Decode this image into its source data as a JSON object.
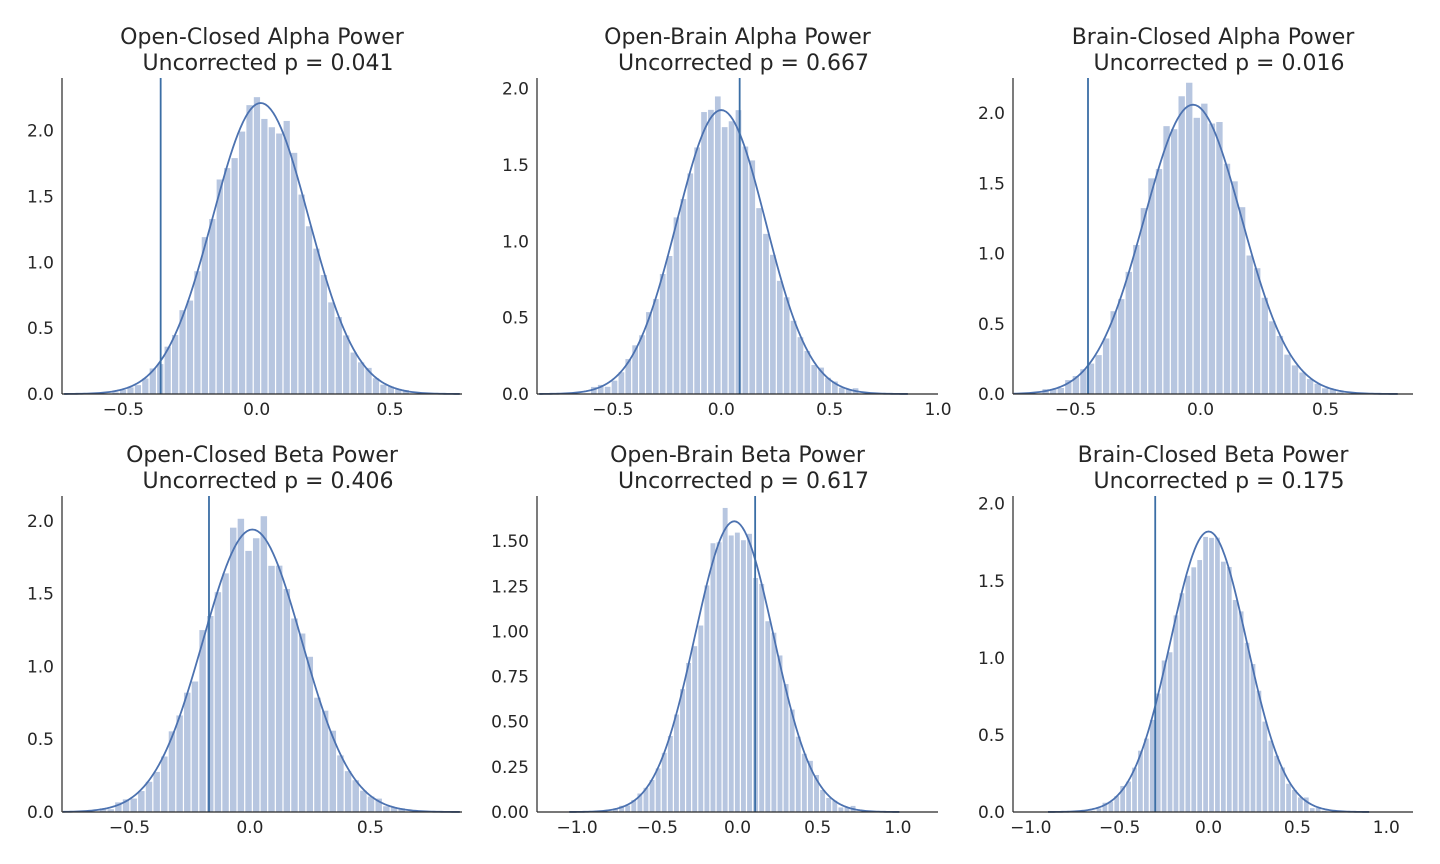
{
  "colors": {
    "bar": "#b7c6e0",
    "kde": "#4c72b0",
    "observed_line": "#3b6ea5",
    "text": "#262626"
  },
  "chart_data": [
    {
      "type": "bar",
      "title_line1": "Open-Closed Alpha Power",
      "title_line2": "Uncorrected p = 0.041",
      "xlim": [
        -0.73,
        0.77
      ],
      "ylim": [
        0,
        2.4
      ],
      "xticks": [
        -0.5,
        0.0,
        0.5
      ],
      "xtick_labels": [
        "−0.5",
        "0.0",
        "0.5"
      ],
      "yticks": [
        0.0,
        0.5,
        1.0,
        1.5,
        2.0
      ],
      "ytick_labels": [
        "0.0",
        "0.5",
        "1.0",
        "1.5",
        "2.0"
      ],
      "mean": 0.015,
      "sd": 0.18,
      "peak": 2.21,
      "bins": 40,
      "observed_value": -0.36,
      "grid": false
    },
    {
      "type": "bar",
      "title_line1": "Open-Brain Alpha Power",
      "title_line2": "Uncorrected p = 0.667",
      "xlim": [
        -0.85,
        1.0
      ],
      "ylim": [
        0,
        2.07
      ],
      "xticks": [
        -0.5,
        0.0,
        0.5,
        1.0
      ],
      "xtick_labels": [
        "−0.5",
        "0.0",
        "0.5",
        "1.0"
      ],
      "yticks": [
        0.0,
        0.5,
        1.0,
        1.5,
        2.0
      ],
      "ytick_labels": [
        "0.0",
        "0.5",
        "1.0",
        "1.5",
        "2.0"
      ],
      "mean": 0.0,
      "sd": 0.205,
      "peak": 1.86,
      "bins": 40,
      "observed_value": 0.085,
      "grid": false
    },
    {
      "type": "bar",
      "title_line1": "Brain-Closed Alpha Power",
      "title_line2": "Uncorrected p = 0.016",
      "xlim": [
        -0.75,
        0.85
      ],
      "ylim": [
        0,
        2.25
      ],
      "xticks": [
        -0.5,
        0.0,
        0.5
      ],
      "xtick_labels": [
        "−0.5",
        "0.0",
        "0.5"
      ],
      "yticks": [
        0.0,
        0.5,
        1.0,
        1.5,
        2.0
      ],
      "ytick_labels": [
        "0.0",
        "0.5",
        "1.0",
        "1.5",
        "2.0"
      ],
      "mean": -0.03,
      "sd": 0.195,
      "peak": 2.06,
      "bins": 40,
      "observed_value": -0.45,
      "grid": false
    },
    {
      "type": "bar",
      "title_line1": "Open-Closed Beta Power",
      "title_line2": "Uncorrected p = 0.406",
      "xlim": [
        -0.78,
        0.88
      ],
      "ylim": [
        0,
        2.17
      ],
      "xticks": [
        -0.5,
        0.0,
        0.5
      ],
      "xtick_labels": [
        "−0.5",
        "0.0",
        "0.5"
      ],
      "yticks": [
        0.0,
        0.5,
        1.0,
        1.5,
        2.0
      ],
      "ytick_labels": [
        "0.0",
        "0.5",
        "1.0",
        "1.5",
        "2.0"
      ],
      "mean": 0.01,
      "sd": 0.205,
      "peak": 1.94,
      "bins": 40,
      "observed_value": -0.17,
      "grid": false
    },
    {
      "type": "bar",
      "title_line1": "Open-Brain Beta Power",
      "title_line2": "Uncorrected p = 0.617",
      "xlim": [
        -1.25,
        1.25
      ],
      "ylim": [
        0,
        1.75
      ],
      "xticks": [
        -1.0,
        -0.5,
        0.0,
        0.5,
        1.0
      ],
      "xtick_labels": [
        "−1.0",
        "−0.5",
        "0.0",
        "0.5",
        "1.0"
      ],
      "mean": -0.02,
      "sd": 0.245,
      "peak": 1.61,
      "bins": 40,
      "yticks": [
        0.0,
        0.25,
        0.5,
        0.75,
        1.0,
        1.25,
        1.5
      ],
      "ytick_labels": [
        "0.00",
        "0.25",
        "0.50",
        "0.75",
        "1.00",
        "1.25",
        "1.50"
      ],
      "observed_value": 0.11,
      "grid": false
    },
    {
      "type": "bar",
      "title_line1": "Brain-Closed Beta Power",
      "title_line2": "Uncorrected p = 0.175",
      "xlim": [
        -1.1,
        1.15
      ],
      "ylim": [
        0,
        2.05
      ],
      "xticks": [
        -1.0,
        -0.5,
        0.0,
        0.5,
        1.0
      ],
      "xtick_labels": [
        "−1.0",
        "−0.5",
        "0.0",
        "0.5",
        "1.0"
      ],
      "yticks": [
        0.0,
        0.5,
        1.0,
        1.5,
        2.0
      ],
      "ytick_labels": [
        "0.0",
        "0.5",
        "1.0",
        "1.5",
        "2.0"
      ],
      "mean": 0.0,
      "sd": 0.215,
      "peak": 1.82,
      "bins": 40,
      "observed_value": -0.3,
      "grid": false
    }
  ]
}
